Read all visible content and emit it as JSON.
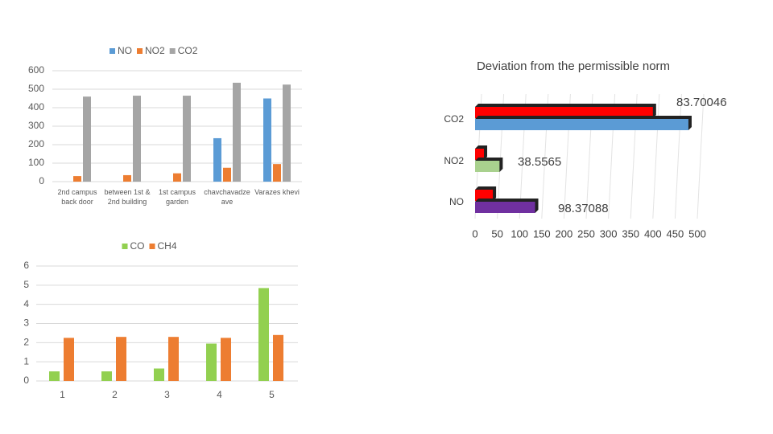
{
  "chart_data": [
    {
      "type": "bar",
      "categories": [
        "2nd campus back door",
        "between 1st & 2nd building",
        "1st campus garden",
        "chavchavadze ave",
        "Varazes khevi"
      ],
      "series": [
        {
          "name": "NO",
          "color": "#5b9bd5",
          "values": [
            0,
            0,
            0,
            235,
            450
          ]
        },
        {
          "name": "NO2",
          "color": "#ed7d31",
          "values": [
            30,
            35,
            45,
            75,
            95
          ]
        },
        {
          "name": "CO2",
          "color": "#a5a5a5",
          "values": [
            460,
            465,
            465,
            535,
            525
          ]
        }
      ],
      "ylim": [
        0,
        600
      ],
      "yticks": [
        0,
        100,
        200,
        300,
        400,
        500,
        600
      ],
      "grid": true,
      "legend": "top"
    },
    {
      "type": "hbar3d",
      "title": "Deviation from the permissible norm",
      "categories": [
        "NO",
        "NO2",
        "CO2"
      ],
      "series": [
        {
          "color": "#ff0000",
          "values": [
            40,
            20,
            400
          ]
        },
        {
          "colors": [
            "#7030a0",
            "#a9d18e",
            "#5b9bd5"
          ],
          "values": [
            135,
            55,
            480
          ]
        }
      ],
      "annotations": [
        "98.37088",
        "38.5565",
        "83.70046"
      ],
      "xlim": [
        0,
        500
      ],
      "xticks": [
        0,
        50,
        100,
        150,
        200,
        250,
        300,
        350,
        400,
        450,
        500
      ],
      "grid": true
    },
    {
      "type": "bar",
      "categories": [
        "1",
        "2",
        "3",
        "4",
        "5"
      ],
      "series": [
        {
          "name": "CO",
          "color": "#92d050",
          "values": [
            0.5,
            0.5,
            0.65,
            1.95,
            4.85
          ]
        },
        {
          "name": "CH4",
          "color": "#ed7d31",
          "values": [
            2.25,
            2.3,
            2.3,
            2.25,
            2.4
          ]
        }
      ],
      "ylim": [
        0,
        6
      ],
      "yticks": [
        0,
        1,
        2,
        3,
        4,
        5,
        6
      ],
      "grid": true,
      "legend": "top"
    }
  ]
}
